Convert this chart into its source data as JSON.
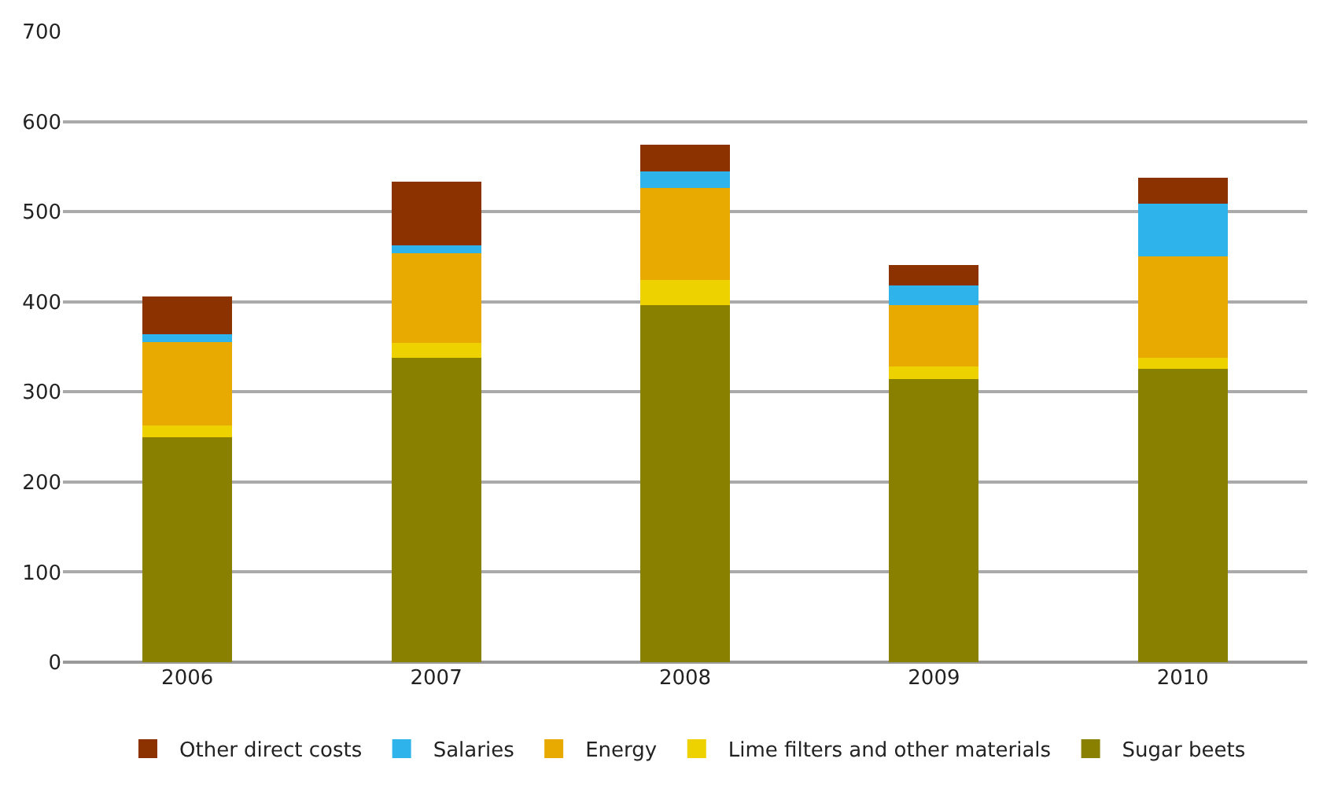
{
  "chart_data": {
    "type": "bar",
    "stacked": true,
    "categories": [
      "2006",
      "2007",
      "2008",
      "2009",
      "2010"
    ],
    "series": [
      {
        "name": "Sugar beets",
        "color": "#8a8000",
        "values": [
          250,
          338,
          396,
          314,
          326
        ]
      },
      {
        "name": "Lime filters and other materials",
        "color": "#eed200",
        "values": [
          13,
          16,
          28,
          14,
          12
        ]
      },
      {
        "name": "Energy",
        "color": "#e8aa00",
        "values": [
          92,
          100,
          102,
          68,
          112
        ]
      },
      {
        "name": "Salaries",
        "color": "#2eb4ea",
        "values": [
          9,
          9,
          19,
          22,
          59
        ]
      },
      {
        "name": "Other direct costs",
        "color": "#8b3200",
        "values": [
          42,
          70,
          29,
          23,
          29
        ]
      }
    ],
    "ylim": [
      0,
      700
    ],
    "yticks": [
      0,
      100,
      200,
      300,
      400,
      500,
      600,
      700
    ],
    "grid": "y",
    "legend": "bottom"
  }
}
